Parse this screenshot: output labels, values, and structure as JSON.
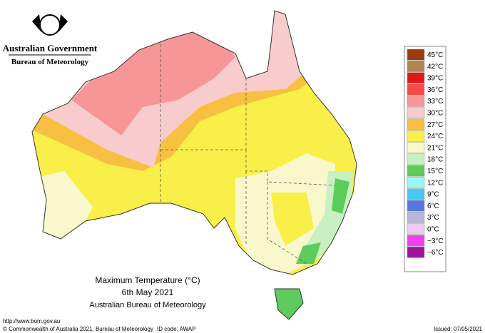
{
  "header": {
    "government": "Australian Government",
    "agency": "Bureau of Meteorology"
  },
  "legend": {
    "items": [
      {
        "label": "45°C",
        "color": "#9c3c0c"
      },
      {
        "label": "42°C",
        "color": "#b5834f"
      },
      {
        "label": "39°C",
        "color": "#e01818"
      },
      {
        "label": "36°C",
        "color": "#f84a4a"
      },
      {
        "label": "33°C",
        "color": "#f69696"
      },
      {
        "label": "30°C",
        "color": "#f8cccc"
      },
      {
        "label": "27°C",
        "color": "#f8c040"
      },
      {
        "label": "24°C",
        "color": "#f8f048"
      },
      {
        "label": "21°C",
        "color": "#f8f8cc"
      },
      {
        "label": "18°C",
        "color": "#c8f0c0"
      },
      {
        "label": "15°C",
        "color": "#5ccc5c"
      },
      {
        "label": "12°C",
        "color": "#98f8f8"
      },
      {
        "label": "9°C",
        "color": "#48c8f4"
      },
      {
        "label": "6°C",
        "color": "#5878e0"
      },
      {
        "label": "3°C",
        "color": "#b8b8d8"
      },
      {
        "label": "0°C",
        "color": "#ecccec"
      },
      {
        "label": "−3°C",
        "color": "#f040f0"
      },
      {
        "label": "−6°C",
        "color": "#a010a0"
      }
    ]
  },
  "caption": {
    "title": "Maximum Temperature (°C)",
    "date": "6th May 2021",
    "source": "Australian Bureau of Meteorology"
  },
  "footer": {
    "url": "http://www.bom.gov.au",
    "copyright": "© Commonwealth of Australia 2021, Bureau of Meteorology",
    "id_code": "ID code: AWAP",
    "issued": "Issued: 07/05/2021"
  }
}
